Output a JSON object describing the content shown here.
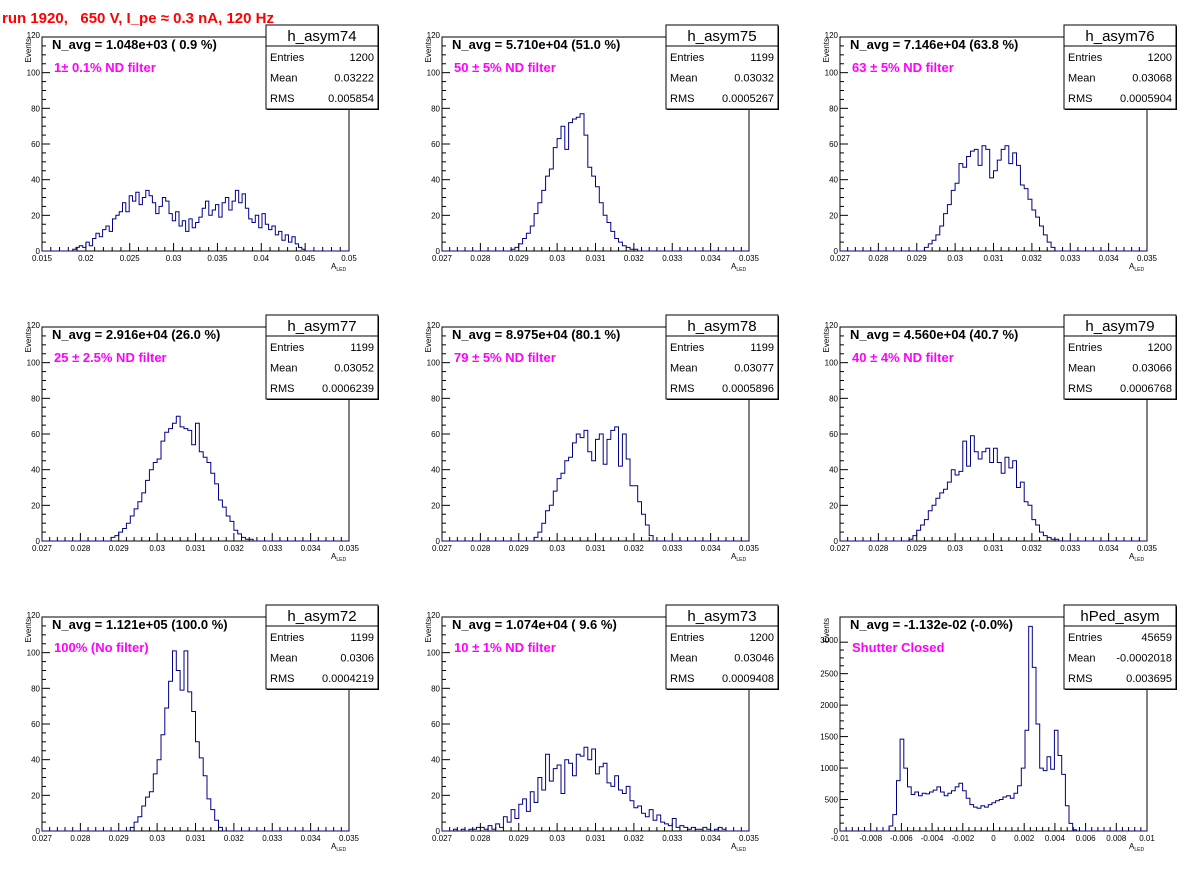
{
  "header": {
    "run_label": "run 1920,   650 V, I_pe ≈ 0.3 nA, 120 Hz"
  },
  "colors": {
    "histogram": "#00008b",
    "filter_label": "#ff00ff",
    "header": "#ff0000",
    "frame": "#000000"
  },
  "axis_common": {
    "ylabel": "Events",
    "xlabel_main": "A",
    "xlabel_sub": "LED"
  },
  "chart_data": [
    {
      "type": "histogram",
      "id": "h_asym74",
      "title": "h_asym74",
      "navg": "N_avg = 1.048e+03 ( 0.9 %)",
      "filter": "1± 0.1% ND filter",
      "stats": [
        [
          "Entries",
          "1200"
        ],
        [
          "Mean",
          "0.03222"
        ],
        [
          "RMS",
          "0.005854"
        ]
      ],
      "xlim": [
        0.015,
        0.05
      ],
      "ylim": [
        0,
        120
      ],
      "xticks": [
        0.015,
        0.02,
        0.025,
        0.03,
        0.035,
        0.04,
        0.045,
        0.05
      ],
      "xticklabels": [
        "0.015",
        "0.02",
        "0.025",
        "0.03",
        "0.035",
        "0.04",
        "0.045",
        "0.05"
      ],
      "yticks": [
        0,
        20,
        40,
        60,
        80,
        100,
        120
      ],
      "yticklabels": [
        "0",
        "20",
        "40",
        "60",
        "80",
        "100",
        "120"
      ],
      "bins": [
        0.0185,
        0.045
      ],
      "values": [
        1,
        2,
        3,
        2,
        5,
        3,
        7,
        10,
        8,
        12,
        14,
        11,
        18,
        20,
        22,
        27,
        22,
        31,
        28,
        33,
        26,
        30,
        34,
        31,
        27,
        21,
        25,
        30,
        28,
        21,
        17,
        22,
        14,
        17,
        11,
        18,
        13,
        16,
        19,
        24,
        28,
        20,
        23,
        26,
        19,
        27,
        30,
        23,
        28,
        34,
        27,
        32,
        24,
        18,
        16,
        20,
        13,
        21,
        15,
        12,
        14,
        9,
        11,
        6,
        9,
        5,
        8,
        4,
        2,
        1
      ]
    },
    {
      "type": "histogram",
      "id": "h_asym75",
      "title": "h_asym75",
      "navg": "N_avg = 5.710e+04 (51.0 %)",
      "filter": "50 ± 5% ND filter",
      "stats": [
        [
          "Entries",
          "1199"
        ],
        [
          "Mean",
          "0.03032"
        ],
        [
          "RMS",
          "0.0005267"
        ]
      ],
      "xlim": [
        0.027,
        0.035
      ],
      "ylim": [
        0,
        120
      ],
      "xticks": [
        0.027,
        0.028,
        0.029,
        0.03,
        0.031,
        0.032,
        0.033,
        0.034,
        0.035
      ],
      "xticklabels": [
        "0.027",
        "0.028",
        "0.029",
        "0.03",
        "0.031",
        "0.032",
        "0.033",
        "0.034",
        "0.035"
      ],
      "yticks": [
        0,
        20,
        40,
        60,
        80,
        100,
        120
      ],
      "yticklabels": [
        "0",
        "20",
        "40",
        "60",
        "80",
        "100",
        "120"
      ],
      "bins": [
        0.0288,
        0.0322
      ],
      "values": [
        1,
        2,
        4,
        7,
        10,
        14,
        21,
        27,
        34,
        42,
        46,
        58,
        63,
        70,
        57,
        72,
        74,
        75,
        77,
        65,
        47,
        42,
        36,
        27,
        20,
        16,
        11,
        7,
        5,
        3,
        2,
        1,
        1,
        0
      ]
    },
    {
      "type": "histogram",
      "id": "h_asym76",
      "title": "h_asym76",
      "navg": "N_avg = 7.146e+04 (63.8 %)",
      "filter": "63 ± 5% ND filter",
      "stats": [
        [
          "Entries",
          "1200"
        ],
        [
          "Mean",
          "0.03068"
        ],
        [
          "RMS",
          "0.0005904"
        ]
      ],
      "xlim": [
        0.027,
        0.035
      ],
      "ylim": [
        0,
        120
      ],
      "xticks": [
        0.027,
        0.028,
        0.029,
        0.03,
        0.031,
        0.032,
        0.033,
        0.034,
        0.035
      ],
      "xticklabels": [
        "0.027",
        "0.028",
        "0.029",
        "0.03",
        "0.031",
        "0.032",
        "0.033",
        "0.034",
        "0.035"
      ],
      "yticks": [
        0,
        20,
        40,
        60,
        80,
        100,
        120
      ],
      "yticklabels": [
        "0",
        "20",
        "40",
        "60",
        "80",
        "100",
        "120"
      ],
      "bins": [
        0.0292,
        0.0326
      ],
      "values": [
        2,
        4,
        6,
        9,
        14,
        21,
        26,
        34,
        38,
        49,
        47,
        53,
        56,
        57,
        48,
        59,
        57,
        41,
        45,
        51,
        57,
        59,
        49,
        55,
        48,
        37,
        35,
        29,
        23,
        19,
        14,
        9,
        5,
        2
      ]
    },
    {
      "type": "histogram",
      "id": "h_asym77",
      "title": "h_asym77",
      "navg": "N_avg = 2.916e+04 (26.0 %)",
      "filter": "25 ± 2.5% ND filter",
      "stats": [
        [
          "Entries",
          "1199"
        ],
        [
          "Mean",
          "0.03052"
        ],
        [
          "RMS",
          "0.0006239"
        ]
      ],
      "xlim": [
        0.027,
        0.035
      ],
      "ylim": [
        0,
        120
      ],
      "xticks": [
        0.027,
        0.028,
        0.029,
        0.03,
        0.031,
        0.032,
        0.033,
        0.034,
        0.035
      ],
      "xticklabels": [
        "0.027",
        "0.028",
        "0.029",
        "0.03",
        "0.031",
        "0.032",
        "0.033",
        "0.034",
        "0.035"
      ],
      "yticks": [
        0,
        20,
        40,
        60,
        80,
        100,
        120
      ],
      "yticklabels": [
        "0",
        "20",
        "40",
        "60",
        "80",
        "100",
        "120"
      ],
      "bins": [
        0.0288,
        0.0326
      ],
      "values": [
        2,
        3,
        5,
        7,
        10,
        14,
        18,
        22,
        27,
        34,
        40,
        44,
        46,
        56,
        61,
        63,
        66,
        70,
        64,
        63,
        62,
        54,
        66,
        50,
        47,
        44,
        38,
        32,
        23,
        19,
        14,
        11,
        6,
        4,
        2,
        1,
        1,
        0
      ]
    },
    {
      "type": "histogram",
      "id": "h_asym78",
      "title": "h_asym78",
      "navg": "N_avg = 8.975e+04 (80.1 %)",
      "filter": "79 ± 5% ND filter",
      "stats": [
        [
          "Entries",
          "1199"
        ],
        [
          "Mean",
          "0.03077"
        ],
        [
          "RMS",
          "0.0005896"
        ]
      ],
      "xlim": [
        0.027,
        0.035
      ],
      "ylim": [
        0,
        120
      ],
      "xticks": [
        0.027,
        0.028,
        0.029,
        0.03,
        0.031,
        0.032,
        0.033,
        0.034,
        0.035
      ],
      "xticklabels": [
        "0.027",
        "0.028",
        "0.029",
        "0.03",
        "0.031",
        "0.032",
        "0.033",
        "0.034",
        "0.035"
      ],
      "yticks": [
        0,
        20,
        40,
        60,
        80,
        100,
        120
      ],
      "yticklabels": [
        "0",
        "20",
        "40",
        "60",
        "80",
        "100",
        "120"
      ],
      "bins": [
        0.0294,
        0.0325
      ],
      "values": [
        2,
        5,
        10,
        17,
        20,
        28,
        35,
        38,
        45,
        47,
        55,
        60,
        58,
        62,
        50,
        45,
        57,
        60,
        43,
        57,
        62,
        64,
        42,
        60,
        46,
        31,
        31,
        22,
        15,
        9,
        3
      ]
    },
    {
      "type": "histogram",
      "id": "h_asym79",
      "title": "h_asym79",
      "navg": "N_avg = 4.560e+04 (40.7 %)",
      "filter": "40 ± 4% ND filter",
      "stats": [
        [
          "Entries",
          "1200"
        ],
        [
          "Mean",
          "0.03066"
        ],
        [
          "RMS",
          "0.0006768"
        ]
      ],
      "xlim": [
        0.027,
        0.035
      ],
      "ylim": [
        0,
        120
      ],
      "xticks": [
        0.027,
        0.028,
        0.029,
        0.03,
        0.031,
        0.032,
        0.033,
        0.034,
        0.035
      ],
      "xticklabels": [
        "0.027",
        "0.028",
        "0.029",
        "0.03",
        "0.031",
        "0.032",
        "0.033",
        "0.034",
        "0.035"
      ],
      "yticks": [
        0,
        20,
        40,
        60,
        80,
        100,
        120
      ],
      "yticklabels": [
        "0",
        "20",
        "40",
        "60",
        "80",
        "100",
        "120"
      ],
      "bins": [
        0.0288,
        0.0328
      ],
      "values": [
        1,
        3,
        6,
        9,
        12,
        17,
        20,
        24,
        27,
        29,
        33,
        40,
        37,
        39,
        56,
        42,
        59,
        50,
        46,
        50,
        52,
        44,
        52,
        44,
        38,
        47,
        41,
        45,
        30,
        33,
        22,
        20,
        12,
        9,
        5,
        3,
        2,
        1,
        1,
        0
      ]
    },
    {
      "type": "histogram",
      "id": "h_asym72",
      "title": "h_asym72",
      "navg": "N_avg = 1.121e+05 (100.0 %)",
      "filter": "100% (No filter)",
      "stats": [
        [
          "Entries",
          "1199"
        ],
        [
          "Mean",
          "0.0306"
        ],
        [
          "RMS",
          "0.0004219"
        ]
      ],
      "xlim": [
        0.027,
        0.035
      ],
      "ylim": [
        0,
        120
      ],
      "xticks": [
        0.027,
        0.028,
        0.029,
        0.03,
        0.031,
        0.032,
        0.033,
        0.034,
        0.035
      ],
      "xticklabels": [
        "0.027",
        "0.028",
        "0.029",
        "0.03",
        "0.031",
        "0.032",
        "0.033",
        "0.034",
        "0.035"
      ],
      "yticks": [
        0,
        20,
        40,
        60,
        80,
        100,
        120
      ],
      "yticklabels": [
        "0",
        "20",
        "40",
        "60",
        "80",
        "100",
        "120"
      ],
      "bins": [
        0.0293,
        0.0317
      ],
      "values": [
        2,
        5,
        8,
        14,
        19,
        22,
        32,
        40,
        54,
        69,
        84,
        101,
        90,
        79,
        101,
        78,
        67,
        50,
        41,
        31,
        18,
        12,
        6,
        2
      ]
    },
    {
      "type": "histogram",
      "id": "h_asym73",
      "title": "h_asym73",
      "navg": "N_avg = 1.074e+04 ( 9.6 %)",
      "filter": "10 ± 1% ND filter",
      "stats": [
        [
          "Entries",
          "1200"
        ],
        [
          "Mean",
          "0.03046"
        ],
        [
          "RMS",
          "0.0009408"
        ]
      ],
      "xlim": [
        0.027,
        0.035
      ],
      "ylim": [
        0,
        120
      ],
      "xticks": [
        0.027,
        0.028,
        0.029,
        0.03,
        0.031,
        0.032,
        0.033,
        0.034,
        0.035
      ],
      "xticklabels": [
        "0.027",
        "0.028",
        "0.029",
        "0.03",
        "0.031",
        "0.032",
        "0.033",
        "0.034",
        "0.035"
      ],
      "yticks": [
        0,
        20,
        40,
        60,
        80,
        100,
        120
      ],
      "yticklabels": [
        "0",
        "20",
        "40",
        "60",
        "80",
        "100",
        "120"
      ],
      "bins": [
        0.0273,
        0.0345
      ],
      "values": [
        1,
        0,
        1,
        0,
        1,
        1,
        2,
        2,
        1,
        3,
        1,
        4,
        2,
        8,
        5,
        12,
        7,
        15,
        18,
        11,
        22,
        16,
        30,
        23,
        43,
        28,
        35,
        37,
        21,
        40,
        38,
        31,
        43,
        42,
        47,
        40,
        46,
        32,
        36,
        38,
        27,
        25,
        31,
        23,
        21,
        25,
        17,
        13,
        14,
        10,
        8,
        12,
        6,
        9,
        5,
        4,
        3,
        7,
        2,
        3,
        2,
        1,
        2,
        1,
        1,
        2,
        1,
        0,
        1,
        2,
        1,
        0
      ]
    },
    {
      "type": "histogram",
      "id": "hPed_asym",
      "title": "hPed_asym",
      "navg": "N_avg = -1.132e-02 (-0.0%)",
      "filter": "Shutter Closed",
      "stats": [
        [
          "Entries",
          "45659"
        ],
        [
          "Mean",
          "-0.0002018"
        ],
        [
          "RMS",
          "0.003695"
        ]
      ],
      "xlim": [
        -0.01,
        0.01
      ],
      "ylim": [
        0,
        3400
      ],
      "xticks": [
        -0.01,
        -0.008,
        -0.006,
        -0.004,
        -0.002,
        0,
        0.002,
        0.004,
        0.006,
        0.008,
        0.01
      ],
      "xticklabels": [
        "-0.01",
        "-0.008",
        "-0.006",
        "-0.004",
        "-0.002",
        "0",
        "0.002",
        "0.004",
        "0.006",
        "0.008",
        "0.01"
      ],
      "yticks": [
        0,
        500,
        1000,
        1500,
        2000,
        2500,
        3000
      ],
      "yticklabels": [
        "0",
        "500",
        "1000",
        "1500",
        "2000",
        "2500",
        "3000"
      ],
      "bins": [
        -0.0068,
        0.0054
      ],
      "values": [
        80,
        260,
        800,
        1460,
        1000,
        700,
        580,
        620,
        560,
        600,
        590,
        620,
        650,
        700,
        620,
        560,
        600,
        640,
        700,
        760,
        640,
        520,
        420,
        380,
        360,
        400,
        380,
        420,
        450,
        480,
        500,
        540,
        560,
        520,
        600,
        720,
        1000,
        1600,
        3250,
        2600,
        1700,
        1000,
        960,
        1180,
        980,
        1600,
        1200,
        900,
        400,
        120,
        20
      ]
    }
  ]
}
